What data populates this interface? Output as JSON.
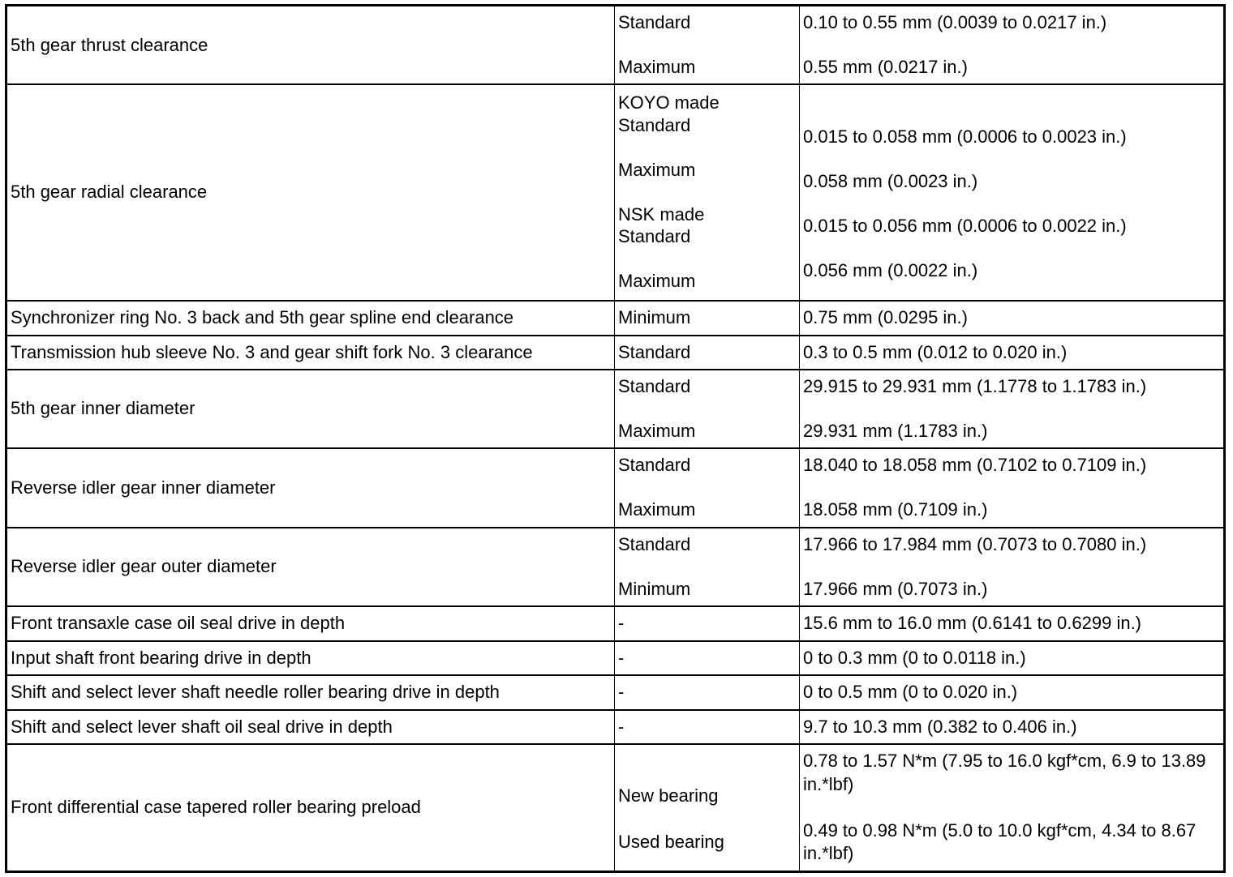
{
  "rows": [
    {
      "item": "5th gear thrust clearance",
      "condition": "Standard\n\nMaximum",
      "value": "0.10 to 0.55 mm (0.0039 to 0.0217 in.)\n\n0.55 mm (0.0217 in.)"
    },
    {
      "item": "5th gear radial clearance",
      "condition": "KOYO made\nStandard\n\nMaximum\n\nNSK made\nStandard\n\nMaximum",
      "value": "\n0.015 to 0.058 mm (0.0006 to 0.0023 in.)\n\n0.058 mm (0.0023 in.)\n\n0.015 to 0.056 mm (0.0006 to 0.0022 in.)\n\n0.056 mm (0.0022 in.)\n"
    },
    {
      "item": "Synchronizer ring No. 3 back and 5th gear spline end clearance",
      "condition": "Minimum",
      "value": "0.75 mm (0.0295 in.)"
    },
    {
      "item": "Transmission hub sleeve No. 3 and gear shift fork No. 3 clearance",
      "condition": "Standard",
      "value": "0.3 to 0.5 mm (0.012 to 0.020 in.)"
    },
    {
      "item": "5th gear inner diameter",
      "condition": "Standard\n\nMaximum",
      "value": "29.915 to 29.931 mm (1.1778 to 1.1783 in.)\n\n29.931 mm (1.1783 in.)"
    },
    {
      "item": "Reverse idler gear inner diameter",
      "condition": "Standard\n\nMaximum",
      "value": "18.040 to 18.058 mm (0.7102 to 0.7109 in.)\n\n18.058 mm (0.7109 in.)"
    },
    {
      "item": "Reverse idler gear outer diameter",
      "condition": "Standard\n\nMinimum",
      "value": "17.966 to 17.984 mm (0.7073 to 0.7080 in.)\n\n17.966 mm (0.7073 in.)"
    },
    {
      "item": "Front transaxle case oil seal drive in depth",
      "condition": "-",
      "value": "15.6 mm to 16.0 mm (0.6141 to 0.6299 in.)"
    },
    {
      "item": "Input shaft front bearing drive in depth",
      "condition": "-",
      "value": "0 to 0.3 mm (0 to 0.0118 in.)"
    },
    {
      "item": "Shift and select lever shaft needle roller bearing drive in depth",
      "condition": "-",
      "value": "0 to 0.5 mm (0 to 0.020 in.)"
    },
    {
      "item": "Shift and select lever shaft oil seal drive in depth",
      "condition": "-",
      "value": "9.7 to 10.3 mm (0.382 to 0.406 in.)"
    },
    {
      "item": "Front differential case tapered roller bearing preload",
      "condition": "\nNew bearing\n\nUsed bearing\n",
      "value": "0.78 to 1.57 N*m (7.95 to 16.0 kgf*cm, 6.9 to 13.89 in.*lbf)\n\n0.49 to 0.98 N*m (5.0 to 10.0 kgf*cm, 4.34 to 8.67 in.*lbf)"
    }
  ]
}
